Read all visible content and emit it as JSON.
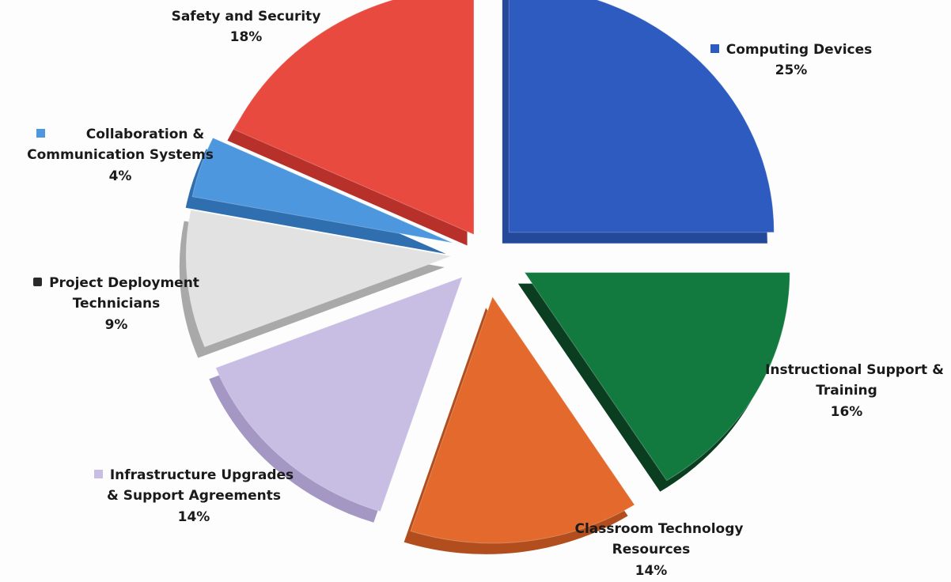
{
  "chart_data": {
    "type": "pie",
    "title": "",
    "unit": "%",
    "slices": [
      {
        "label": "Computing Devices",
        "value": 25,
        "pct_label": "25%",
        "color": "#2e5bbf",
        "side_color": "#24489a"
      },
      {
        "label": "Instructional Support & Training",
        "value": 16,
        "pct_label": "16%",
        "color": "#127a3f",
        "side_color": "#0b3d21"
      },
      {
        "label": "Classroom Technology Resources",
        "value": 14,
        "pct_label": "14%",
        "color": "#e36a2c",
        "side_color": "#b24e1d"
      },
      {
        "label": "Infrastructure Upgrades & Support Agreements",
        "value": 14,
        "pct_label": "14%",
        "color": "#c8bde3",
        "side_color": "#a497c4"
      },
      {
        "label": "Project Deployment Technicians",
        "value": 9,
        "pct_label": "9%",
        "color": "#e2e2e2",
        "side_color": "#a9a9a9"
      },
      {
        "label": "Collaboration & Communication Systems",
        "value": 4,
        "pct_label": "4%",
        "color": "#4d97de",
        "side_color": "#2f6fb0"
      },
      {
        "label": "Safety and Security",
        "value": 18,
        "pct_label": "18%",
        "color": "#e84a3f",
        "side_color": "#b8302a"
      }
    ],
    "legend_placement": "labels-around-slices",
    "exploded": true,
    "style": "3d"
  },
  "labels": {
    "computing": {
      "name": "Computing Devices",
      "pct": "25%",
      "swatch": "#2e5bbf"
    },
    "instructional": {
      "name1": "Instructional Support &",
      "name2": "Training",
      "pct": "16%",
      "swatch": "#127a3f"
    },
    "classroom": {
      "name1": "Classroom Technology",
      "name2": "Resources",
      "pct": "14%",
      "swatch": "#e36a2c"
    },
    "infrastructure": {
      "name1": "Infrastructure Upgrades",
      "name2": "& Support Agreements",
      "pct": "14%",
      "swatch": "#c8bde3"
    },
    "project": {
      "name1": "Project Deployment",
      "name2": "Technicians",
      "pct": "9%",
      "swatch": "#2a2a2a"
    },
    "collaboration": {
      "name1": "Collaboration &",
      "name2": "Communication Systems",
      "pct": "4%",
      "swatch": "#4d97de"
    },
    "safety": {
      "name": "Safety and Security",
      "pct": "18%"
    }
  }
}
